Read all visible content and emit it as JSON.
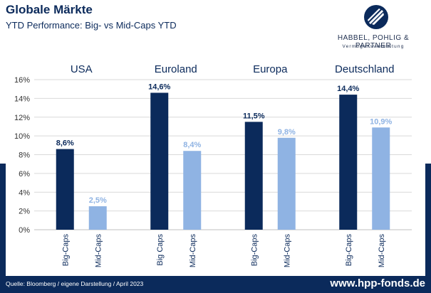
{
  "header": {
    "title": "Globale Märkte",
    "subtitle": "YTD Performance: Big- vs Mid-Caps YTD"
  },
  "logo": {
    "name": "HABBEL, POHLIG & PARTNER",
    "tagline": "Vermögensverwaltung",
    "icon": "stylized-wing-icon"
  },
  "footer": {
    "source": "Quelle: Bloomberg / eigene Darstellung / April 2023",
    "url": "www.hpp-fonds.de"
  },
  "colors": {
    "big_caps": "#0b2a5b",
    "mid_caps": "#8fb3e3",
    "brand": "#0b2a5b"
  },
  "chart_data": {
    "type": "bar",
    "groups": [
      "USA",
      "Euroland",
      "Europa",
      "Deutschland"
    ],
    "series": [
      {
        "labels": [
          "Big-Caps",
          "Big Caps",
          "Big-Caps",
          "Big-Caps"
        ],
        "values": [
          8.6,
          14.6,
          11.5,
          14.4
        ],
        "data_labels": [
          "8,6%",
          "14,6%",
          "11,5%",
          "14,4%"
        ]
      },
      {
        "labels": [
          "Mid-Caps",
          "Mid-Caps",
          "Mid-Caps",
          "Mid-Caps"
        ],
        "values": [
          2.5,
          8.4,
          9.8,
          10.9
        ],
        "data_labels": [
          "2,5%",
          "8,4%",
          "9,8%",
          "10,9%"
        ]
      }
    ],
    "yticks": [
      "0%",
      "2%",
      "4%",
      "6%",
      "8%",
      "10%",
      "12%",
      "14%",
      "16%"
    ],
    "ylim": [
      0,
      16
    ],
    "grid": true
  }
}
